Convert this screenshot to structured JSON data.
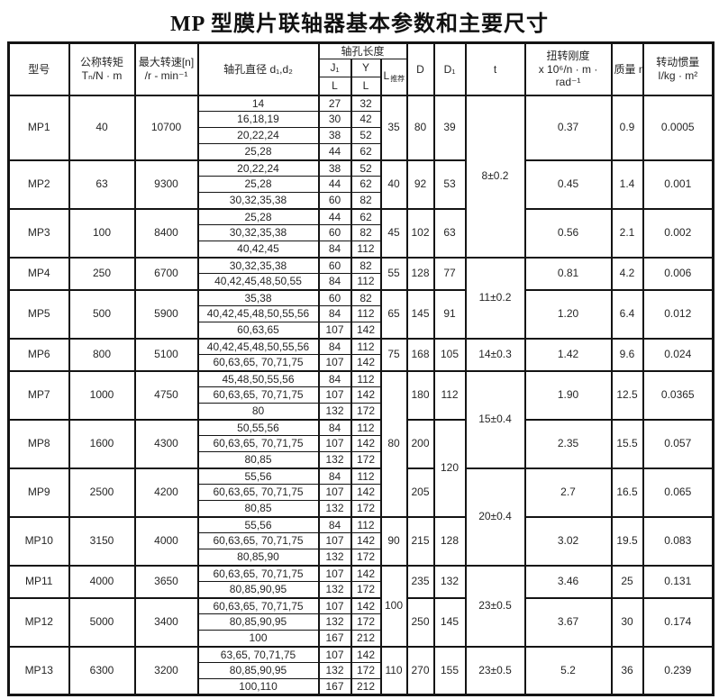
{
  "title": "MP 型膜片联轴器基本参数和主要尺寸",
  "header": {
    "model": "型号",
    "torque_line1": "公称转矩",
    "torque_line2": "Tₙ/N · m",
    "speed_line1": "最大转速[n]",
    "speed_line2": "/r - min⁻¹",
    "bore": "轴孔直径 d₁,d₂",
    "hole_length": "轴孔长度",
    "j1": "J₁",
    "y": "Y",
    "l": "L",
    "l_rec_main": "L",
    "l_rec_sub": "推荐",
    "d": "D",
    "d1": "D₁",
    "t": "t",
    "stiffness_line1": "扭转刚度",
    "stiffness_line2": "x 10⁶/n · m ·",
    "stiffness_line3": "rad⁻¹",
    "mass": "质量  m/kg",
    "inertia_line1": "转动惯量",
    "inertia_line2": "I/kg · m²"
  },
  "groups": [
    {
      "model": "MP1",
      "torque": "40",
      "speed": "10700",
      "bores": [
        {
          "d": "14",
          "j": "27",
          "y": "32"
        },
        {
          "d": "16,18,19",
          "j": "30",
          "y": "42"
        },
        {
          "d": "20,22,24",
          "j": "38",
          "y": "52"
        },
        {
          "d": "25,28",
          "j": "44",
          "y": "62"
        }
      ],
      "l_rec": "35",
      "l_rec_span": 4,
      "d": "80",
      "d1": "39",
      "d1_span": 4,
      "t": "8±0.2",
      "t_span": 10,
      "stiffness": "0.37",
      "mass": "0.9",
      "inertia": "0.0005"
    },
    {
      "model": "MP2",
      "torque": "63",
      "speed": "9300",
      "bores": [
        {
          "d": "20,22,24",
          "j": "38",
          "y": "52"
        },
        {
          "d": "25,28",
          "j": "44",
          "y": "62"
        },
        {
          "d": "30,32,35,38",
          "j": "60",
          "y": "82"
        }
      ],
      "l_rec": "40",
      "l_rec_span": 3,
      "d": "92",
      "d1": "53",
      "d1_span": 3,
      "stiffness": "0.45",
      "mass": "1.4",
      "inertia": "0.001"
    },
    {
      "model": "MP3",
      "torque": "100",
      "speed": "8400",
      "bores": [
        {
          "d": "25,28",
          "j": "44",
          "y": "62"
        },
        {
          "d": "30,32,35,38",
          "j": "60",
          "y": "82"
        },
        {
          "d": "40,42,45",
          "j": "84",
          "y": "112"
        }
      ],
      "l_rec": "45",
      "l_rec_span": 3,
      "d": "102",
      "d1": "63",
      "d1_span": 3,
      "stiffness": "0.56",
      "mass": "2.1",
      "inertia": "0.002"
    },
    {
      "model": "MP4",
      "torque": "250",
      "speed": "6700",
      "bores": [
        {
          "d": "30,32,35,38",
          "j": "60",
          "y": "82"
        },
        {
          "d": "40,42,45,48,50,55",
          "j": "84",
          "y": "112"
        }
      ],
      "l_rec": "55",
      "l_rec_span": 2,
      "d": "128",
      "d1": "77",
      "d1_span": 2,
      "t": "11±0.2",
      "t_span": 5,
      "stiffness": "0.81",
      "mass": "4.2",
      "inertia": "0.006"
    },
    {
      "model": "MP5",
      "torque": "500",
      "speed": "5900",
      "bores": [
        {
          "d": "35,38",
          "j": "60",
          "y": "82"
        },
        {
          "d": "40,42,45,48,50,55,56",
          "j": "84",
          "y": "112"
        },
        {
          "d": "60,63,65",
          "j": "107",
          "y": "142"
        }
      ],
      "l_rec": "65",
      "l_rec_span": 3,
      "d": "145",
      "d1": "91",
      "d1_span": 3,
      "stiffness": "1.20",
      "mass": "6.4",
      "inertia": "0.012"
    },
    {
      "model": "MP6",
      "torque": "800",
      "speed": "5100",
      "bores": [
        {
          "d": "40,42,45,48,50,55,56",
          "j": "84",
          "y": "112"
        },
        {
          "d": "60,63,65, 70,71,75",
          "j": "107",
          "y": "142"
        }
      ],
      "l_rec": "75",
      "l_rec_span": 2,
      "d": "168",
      "d1": "105",
      "d1_span": 2,
      "t": "14±0.3",
      "t_span": 2,
      "stiffness": "1.42",
      "mass": "9.6",
      "inertia": "0.024"
    },
    {
      "model": "MP7",
      "torque": "1000",
      "speed": "4750",
      "bores": [
        {
          "d": "45,48,50,55,56",
          "j": "84",
          "y": "112"
        },
        {
          "d": "60,63,65, 70,71,75",
          "j": "107",
          "y": "142"
        },
        {
          "d": "80",
          "j": "132",
          "y": "172"
        }
      ],
      "l_rec": "80",
      "l_rec_span": 9,
      "d": "180",
      "d1": "112",
      "d1_span": 3,
      "t": "15±0.4",
      "t_span": 6,
      "stiffness": "1.90",
      "mass": "12.5",
      "inertia": "0.0365"
    },
    {
      "model": "MP8",
      "torque": "1600",
      "speed": "4300",
      "bores": [
        {
          "d": "50,55,56",
          "j": "84",
          "y": "112"
        },
        {
          "d": "60,63,65, 70,71,75",
          "j": "107",
          "y": "142"
        },
        {
          "d": "80,85",
          "j": "132",
          "y": "172"
        }
      ],
      "d": "200",
      "d1": "120",
      "d1_span": 6,
      "stiffness": "2.35",
      "mass": "15.5",
      "inertia": "0.057"
    },
    {
      "model": "MP9",
      "torque": "2500",
      "speed": "4200",
      "bores": [
        {
          "d": "55,56",
          "j": "84",
          "y": "112"
        },
        {
          "d": "60,63,65, 70,71,75",
          "j": "107",
          "y": "142"
        },
        {
          "d": "80,85",
          "j": "132",
          "y": "172"
        }
      ],
      "d": "205",
      "t": "20±0.4",
      "t_span": 6,
      "stiffness": "2.7",
      "mass": "16.5",
      "inertia": "0.065"
    },
    {
      "model": "MP10",
      "torque": "3150",
      "speed": "4000",
      "bores": [
        {
          "d": "55,56",
          "j": "84",
          "y": "112"
        },
        {
          "d": "60,63,65, 70,71,75",
          "j": "107",
          "y": "142"
        },
        {
          "d": "80,85,90",
          "j": "132",
          "y": "172"
        }
      ],
      "l_rec": "90",
      "l_rec_span": 3,
      "d": "215",
      "d1": "128",
      "d1_span": 3,
      "stiffness": "3.02",
      "mass": "19.5",
      "inertia": "0.083"
    },
    {
      "model": "MP11",
      "torque": "4000",
      "speed": "3650",
      "bores": [
        {
          "d": "60,63,65, 70,71,75",
          "j": "107",
          "y": "142"
        },
        {
          "d": "80,85,90,95",
          "j": "132",
          "y": "172"
        }
      ],
      "l_rec": "100",
      "l_rec_span": 5,
      "d": "235",
      "d1": "132",
      "d1_span": 2,
      "t": "23±0.5",
      "t_span": 5,
      "stiffness": "3.46",
      "mass": "25",
      "inertia": "0.131"
    },
    {
      "model": "MP12",
      "torque": "5000",
      "speed": "3400",
      "bores": [
        {
          "d": "60,63,65, 70,71,75",
          "j": "107",
          "y": "142"
        },
        {
          "d": "80,85,90,95",
          "j": "132",
          "y": "172"
        },
        {
          "d": "100",
          "j": "167",
          "y": "212"
        }
      ],
      "d": "250",
      "d1": "145",
      "d1_span": 3,
      "stiffness": "3.67",
      "mass": "30",
      "inertia": "0.174"
    },
    {
      "model": "MP13",
      "torque": "6300",
      "speed": "3200",
      "bores": [
        {
          "d": "63,65, 70,71,75",
          "j": "107",
          "y": "142"
        },
        {
          "d": "80,85,90,95",
          "j": "132",
          "y": "172"
        },
        {
          "d": "100,110",
          "j": "167",
          "y": "212"
        }
      ],
      "l_rec": "110",
      "l_rec_span": 3,
      "d": "270",
      "d1": "155",
      "d1_span": 3,
      "t": "23±0.5",
      "t_span": 3,
      "stiffness": "5.2",
      "mass": "36",
      "inertia": "0.239"
    }
  ]
}
